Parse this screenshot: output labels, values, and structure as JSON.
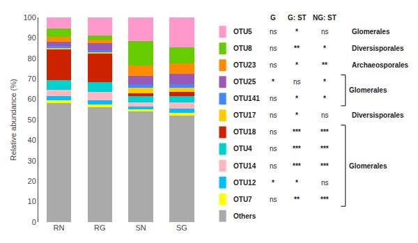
{
  "chart_data": {
    "type": "bar",
    "stacked": true,
    "categories": [
      "RN",
      "RG",
      "SN",
      "SG"
    ],
    "series": [
      {
        "name": "Others",
        "color": "#aaaaaa",
        "values": [
          58.0,
          56.0,
          54.0,
          52.0
        ]
      },
      {
        "name": "OTU7",
        "color": "#ffff00",
        "values": [
          1.5,
          1.5,
          1.0,
          1.5
        ],
        "G": "ns",
        "GST": "**",
        "NGST": "***"
      },
      {
        "name": "OTU12",
        "color": "#00bfff",
        "values": [
          2.0,
          2.0,
          1.5,
          2.0
        ],
        "G": "*",
        "GST": "*",
        "NGST": "ns"
      },
      {
        "name": "OTU14",
        "color": "#ffb6c1",
        "values": [
          3.0,
          4.0,
          2.0,
          3.0
        ],
        "G": "ns",
        "GST": "***",
        "NGST": "***"
      },
      {
        "name": "OTU4",
        "color": "#00d0d0",
        "values": [
          5.0,
          5.0,
          3.0,
          3.0
        ],
        "G": "ns",
        "GST": "***",
        "NGST": "***"
      },
      {
        "name": "OTU18",
        "color": "#cc2200",
        "values": [
          15.0,
          14.0,
          1.5,
          2.0
        ],
        "G": "ns",
        "GST": "***",
        "NGST": "***"
      },
      {
        "name": "OTU17",
        "color": "#ffcc00",
        "values": [
          0.5,
          0.5,
          2.5,
          2.0
        ],
        "G": "ns",
        "GST": "*",
        "NGST": "ns",
        "order": "Diversisporales"
      },
      {
        "name": "OTU141",
        "color": "#4488ff",
        "values": [
          1.0,
          1.0,
          2.0,
          2.0
        ],
        "G": "ns",
        "GST": "*",
        "NGST": "*"
      },
      {
        "name": "OTU25",
        "color": "#9b59b6",
        "values": [
          2.0,
          3.5,
          4.0,
          5.0
        ],
        "G": "*",
        "GST": "ns",
        "NGST": "*"
      },
      {
        "name": "OTU23",
        "color": "#ff8c00",
        "values": [
          2.5,
          1.5,
          5.0,
          5.0
        ],
        "G": "ns",
        "GST": "*",
        "NGST": "**",
        "order": "Archaeosporales"
      },
      {
        "name": "OTU8",
        "color": "#66cc00",
        "values": [
          4.0,
          2.0,
          12.0,
          8.0
        ],
        "G": "ns",
        "GST": "**",
        "NGST": "*",
        "order": "Diversisporales"
      },
      {
        "name": "OTU5",
        "color": "#ff99cc",
        "values": [
          5.5,
          9.0,
          11.5,
          14.5
        ],
        "G": "ns",
        "GST": "*",
        "NGST": "ns",
        "order": "Glomerales"
      }
    ],
    "table_headers": {
      "G": "G",
      "GST": "G: ST",
      "NGST": "NG: ST"
    },
    "brackets": [
      {
        "from": "OTU25",
        "to": "OTU141",
        "label": "Glomerales"
      },
      {
        "from": "OTU18",
        "to": "OTU7",
        "label": "Glomerales"
      }
    ],
    "ylabel": "Relative abundance (%)",
    "ylim": [
      0,
      100
    ],
    "yticks": [
      0,
      10,
      20,
      30,
      40,
      50,
      60,
      70,
      80,
      90,
      100
    ],
    "grid": false,
    "legend": "right"
  }
}
